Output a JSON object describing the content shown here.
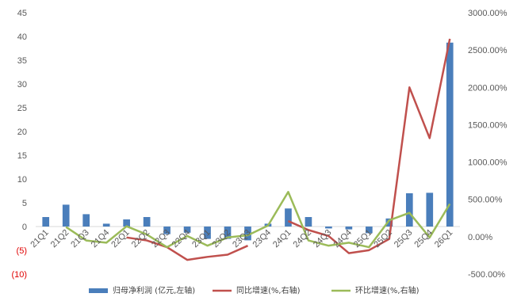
{
  "chart_data": {
    "type": "bar+line",
    "categories": [
      "21Q1",
      "21Q2",
      "21Q3",
      "21Q4",
      "22Q1",
      "22Q2",
      "22Q3",
      "22Q4",
      "23Q1",
      "23Q2",
      "23Q3",
      "23Q4",
      "24Q1",
      "24Q2",
      "24Q3",
      "24Q4",
      "25Q1",
      "25Q2",
      "25Q3",
      "25Q4",
      "26Q1"
    ],
    "y_left": {
      "min": -10,
      "max": 45,
      "step": 5,
      "tick_labels": [
        "(10)",
        "(5)",
        "0",
        "5",
        "10",
        "15",
        "20",
        "25",
        "30",
        "35",
        "40",
        "45"
      ]
    },
    "y_right": {
      "min": -500,
      "max": 3000,
      "step": 500,
      "tick_labels": [
        "-500.00%",
        "0.00%",
        "500.00%",
        "1000.00%",
        "1500.00%",
        "2000.00%",
        "2500.00%",
        "3000.00%"
      ]
    },
    "series": [
      {
        "name": "归母净利润 (亿元,左轴)",
        "type": "bar",
        "axis": "left",
        "color": "#4a7ebb",
        "values": [
          2.0,
          4.6,
          2.6,
          0.6,
          1.5,
          2.0,
          -1.6,
          -1.3,
          -2.6,
          -2.6,
          -2.9,
          0.6,
          3.8,
          2.0,
          -0.4,
          -0.6,
          -1.4,
          1.7,
          7.0,
          7.1,
          38.7
        ]
      },
      {
        "name": "同比增速(%,右轴)",
        "type": "line",
        "axis": "right",
        "color": "#c0504d",
        "values": [
          null,
          null,
          null,
          null,
          -10,
          -50,
          -140,
          -310,
          -270,
          -240,
          -120,
          null,
          210,
          90,
          10,
          -220,
          -180,
          -30,
          2000,
          1320,
          2650
        ]
      },
      {
        "name": "环比增速(%,右轴)",
        "type": "line",
        "axis": "right",
        "color": "#9bbb59",
        "values": [
          null,
          130,
          -50,
          -80,
          140,
          30,
          -140,
          10,
          -120,
          -10,
          20,
          150,
          600,
          -50,
          -120,
          -80,
          -140,
          220,
          320,
          -10,
          440
        ]
      }
    ],
    "legend_position": "bottom",
    "grid": false
  }
}
